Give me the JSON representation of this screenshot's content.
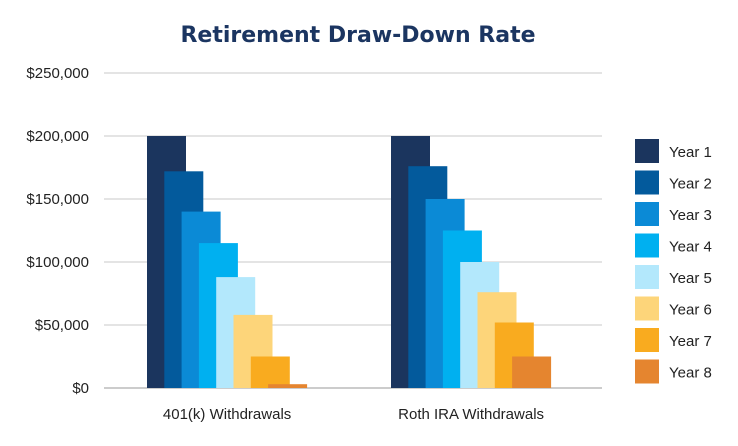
{
  "chart_data": {
    "type": "bar",
    "title": "Retirement Draw-Down Rate",
    "xlabel": "",
    "ylabel": "",
    "categories": [
      "401(k) Withdrawals",
      "Roth IRA Withdrawals"
    ],
    "series": [
      {
        "name": "Year 1",
        "color": "#1b355e",
        "values": [
          200000,
          200000
        ]
      },
      {
        "name": "Year 2",
        "color": "#035a9c",
        "values": [
          172000,
          176000
        ]
      },
      {
        "name": "Year 3",
        "color": "#0b8ad6",
        "values": [
          140000,
          150000
        ]
      },
      {
        "name": "Year 4",
        "color": "#00b0f0",
        "values": [
          115000,
          125000
        ]
      },
      {
        "name": "Year 5",
        "color": "#b3e8fc",
        "values": [
          88000,
          100000
        ]
      },
      {
        "name": "Year 6",
        "color": "#fdd57a",
        "values": [
          58000,
          76000
        ]
      },
      {
        "name": "Year 7",
        "color": "#f9ab1f",
        "values": [
          25000,
          52000
        ]
      },
      {
        "name": "Year 8",
        "color": "#e5852f",
        "values": [
          3000,
          25000
        ]
      }
    ],
    "ylim": [
      0,
      250000
    ],
    "yticks": [
      {
        "value": 0,
        "label": "$0"
      },
      {
        "value": 50000,
        "label": "$50,000"
      },
      {
        "value": 100000,
        "label": "$100,000"
      },
      {
        "value": 150000,
        "label": "$150,000"
      },
      {
        "value": 200000,
        "label": "$200,000"
      },
      {
        "value": 250000,
        "label": "$250,000"
      }
    ],
    "grid": true,
    "legend": "right"
  }
}
